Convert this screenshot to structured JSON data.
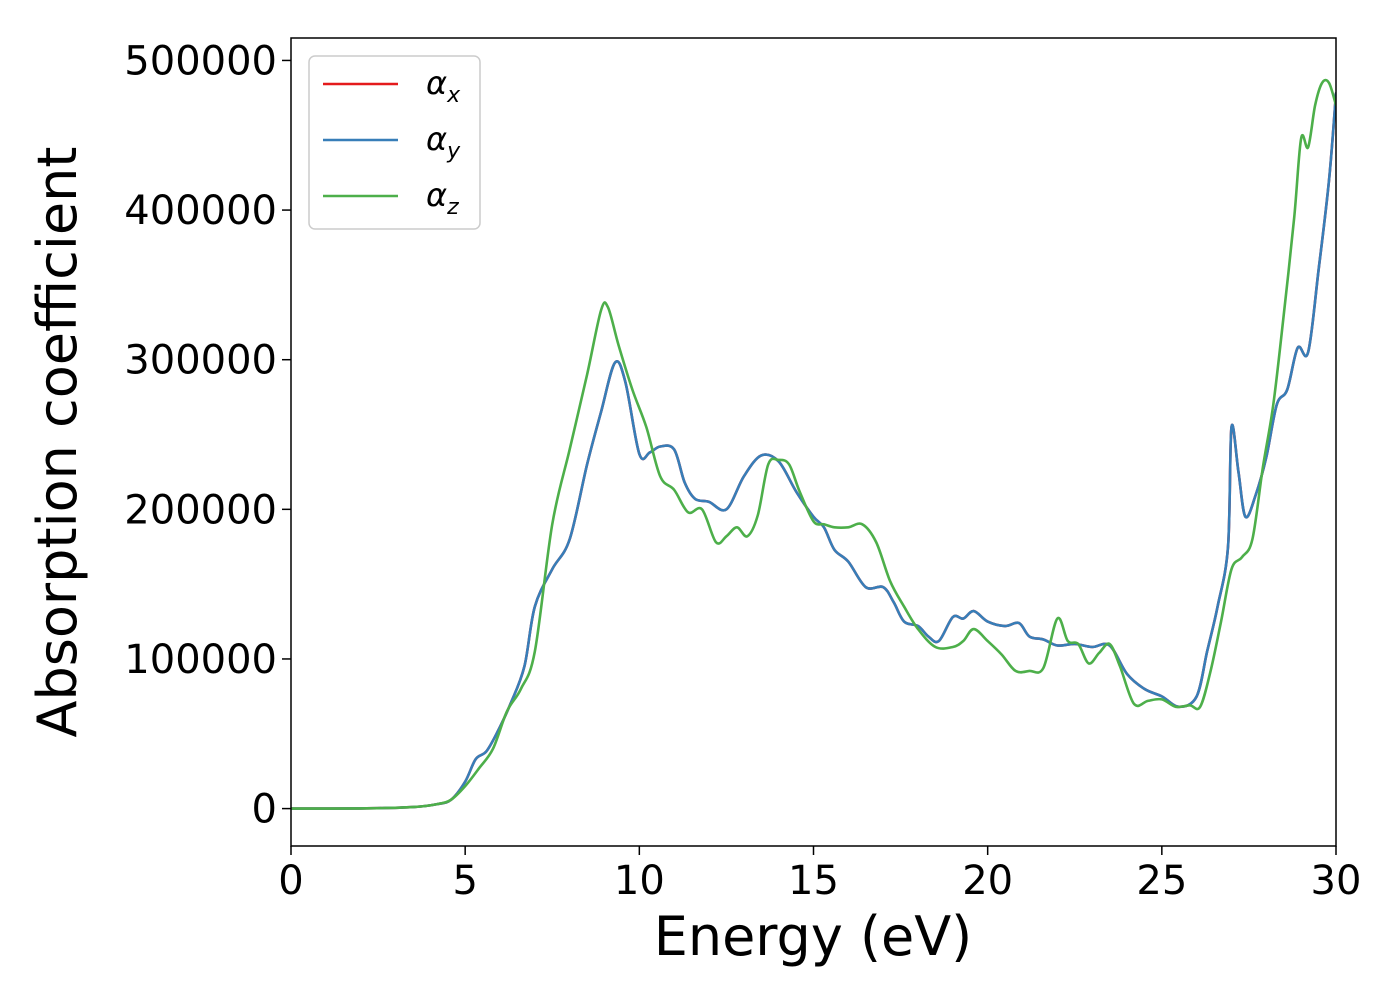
{
  "chart_data": {
    "type": "line",
    "title": "",
    "xlabel": "Energy (eV)",
    "ylabel": "Absorption coefficient",
    "xlim": [
      0,
      30
    ],
    "ylim": [
      -25000,
      515000
    ],
    "xticks": [
      0,
      5,
      10,
      15,
      20,
      25,
      30
    ],
    "yticks": [
      0,
      100000,
      200000,
      300000,
      400000,
      500000
    ],
    "xtick_labels": [
      "0",
      "5",
      "10",
      "15",
      "20",
      "25",
      "30"
    ],
    "ytick_labels": [
      "0",
      "100000",
      "200000",
      "300000",
      "400000",
      "500000"
    ],
    "grid": false,
    "legend_position": "upper-left",
    "series": [
      {
        "name": "α",
        "subscript": "x",
        "color": "#e41a1c",
        "x": [
          0,
          2,
          3.5,
          4.2,
          4.6,
          5.0,
          5.3,
          5.6,
          5.9,
          6.3,
          6.7,
          7.0,
          7.5,
          8.0,
          8.5,
          8.9,
          9.3,
          9.6,
          10.0,
          10.3,
          10.6,
          11.0,
          11.3,
          11.6,
          12.0,
          12.5,
          13.0,
          13.5,
          14.0,
          14.5,
          15.0,
          15.3,
          15.6,
          16.0,
          16.5,
          17.0,
          17.3,
          17.6,
          18.0,
          18.3,
          18.6,
          19.0,
          19.3,
          19.6,
          20.0,
          20.5,
          20.9,
          21.2,
          21.6,
          22.0,
          22.5,
          23.0,
          23.5,
          24.0,
          24.5,
          25.0,
          25.5,
          26.0,
          26.3,
          26.6,
          26.9,
          27.0,
          27.2,
          27.4,
          27.7,
          28.0,
          28.3,
          28.6,
          28.9,
          29.2,
          29.5,
          29.8,
          30.0
        ],
        "values": [
          0,
          100,
          1000,
          3000,
          6000,
          18000,
          33000,
          38000,
          50000,
          70000,
          95000,
          135000,
          160000,
          180000,
          230000,
          265000,
          298000,
          285000,
          237000,
          238000,
          242000,
          240000,
          218000,
          207000,
          205000,
          200000,
          222000,
          236000,
          232000,
          212000,
          195000,
          188000,
          173000,
          165000,
          148000,
          148000,
          138000,
          125000,
          122000,
          115000,
          112000,
          128000,
          127000,
          132000,
          125000,
          122000,
          124000,
          115000,
          113000,
          109000,
          110000,
          108000,
          109000,
          90000,
          80000,
          75000,
          68000,
          75000,
          105000,
          135000,
          175000,
          255000,
          225000,
          195000,
          210000,
          235000,
          270000,
          280000,
          308000,
          305000,
          360000,
          420000,
          478000
        ]
      },
      {
        "name": "α",
        "subscript": "y",
        "color": "#377eb8",
        "x": [
          0,
          2,
          3.5,
          4.2,
          4.6,
          5.0,
          5.3,
          5.6,
          5.9,
          6.3,
          6.7,
          7.0,
          7.5,
          8.0,
          8.5,
          8.9,
          9.3,
          9.6,
          10.0,
          10.3,
          10.6,
          11.0,
          11.3,
          11.6,
          12.0,
          12.5,
          13.0,
          13.5,
          14.0,
          14.5,
          15.0,
          15.3,
          15.6,
          16.0,
          16.5,
          17.0,
          17.3,
          17.6,
          18.0,
          18.3,
          18.6,
          19.0,
          19.3,
          19.6,
          20.0,
          20.5,
          20.9,
          21.2,
          21.6,
          22.0,
          22.5,
          23.0,
          23.5,
          24.0,
          24.5,
          25.0,
          25.5,
          26.0,
          26.3,
          26.6,
          26.9,
          27.0,
          27.2,
          27.4,
          27.7,
          28.0,
          28.3,
          28.6,
          28.9,
          29.2,
          29.5,
          29.8,
          30.0
        ],
        "values": [
          0,
          100,
          1000,
          3000,
          6000,
          18000,
          33000,
          38000,
          50000,
          70000,
          95000,
          135000,
          160000,
          180000,
          230000,
          265000,
          298000,
          285000,
          237000,
          238000,
          242000,
          240000,
          218000,
          207000,
          205000,
          200000,
          222000,
          236000,
          232000,
          212000,
          195000,
          188000,
          173000,
          165000,
          148000,
          148000,
          138000,
          125000,
          122000,
          115000,
          112000,
          128000,
          127000,
          132000,
          125000,
          122000,
          124000,
          115000,
          113000,
          109000,
          110000,
          108000,
          109000,
          90000,
          80000,
          75000,
          68000,
          75000,
          105000,
          135000,
          175000,
          255000,
          225000,
          195000,
          210000,
          235000,
          270000,
          280000,
          308000,
          305000,
          360000,
          420000,
          478000
        ]
      },
      {
        "name": "α",
        "subscript": "z",
        "color": "#4daf4a",
        "x": [
          0,
          2,
          3.5,
          4.2,
          4.6,
          5.0,
          5.4,
          5.8,
          6.2,
          6.6,
          7.0,
          7.5,
          8.0,
          8.5,
          8.9,
          9.1,
          9.4,
          9.8,
          10.2,
          10.6,
          11.0,
          11.4,
          11.8,
          12.2,
          12.5,
          12.8,
          13.1,
          13.4,
          13.7,
          14.0,
          14.3,
          14.6,
          15.0,
          15.3,
          15.6,
          16.0,
          16.4,
          16.8,
          17.2,
          17.6,
          18.0,
          18.5,
          19.0,
          19.3,
          19.6,
          20.0,
          20.4,
          20.8,
          21.2,
          21.6,
          22.0,
          22.3,
          22.6,
          22.9,
          23.2,
          23.5,
          23.8,
          24.2,
          24.6,
          25.0,
          25.4,
          25.8,
          26.1,
          26.4,
          26.7,
          27.0,
          27.3,
          27.6,
          27.9,
          28.2,
          28.5,
          28.8,
          29.0,
          29.2,
          29.4,
          29.6,
          29.8,
          30.0
        ],
        "values": [
          0,
          100,
          1000,
          3000,
          6000,
          15000,
          27000,
          40000,
          65000,
          80000,
          105000,
          190000,
          240000,
          290000,
          333000,
          335000,
          310000,
          280000,
          255000,
          222000,
          213000,
          198000,
          200000,
          178000,
          182000,
          188000,
          182000,
          196000,
          230000,
          233000,
          230000,
          212000,
          192000,
          190000,
          188000,
          188000,
          190000,
          178000,
          152000,
          135000,
          120000,
          108000,
          108000,
          112000,
          120000,
          112000,
          103000,
          92000,
          92000,
          94000,
          127000,
          112000,
          110000,
          97000,
          104000,
          110000,
          95000,
          70000,
          72000,
          73000,
          68000,
          69000,
          68000,
          92000,
          125000,
          160000,
          168000,
          180000,
          228000,
          270000,
          330000,
          395000,
          448000,
          442000,
          470000,
          485000,
          485000,
          470000
        ]
      }
    ]
  }
}
